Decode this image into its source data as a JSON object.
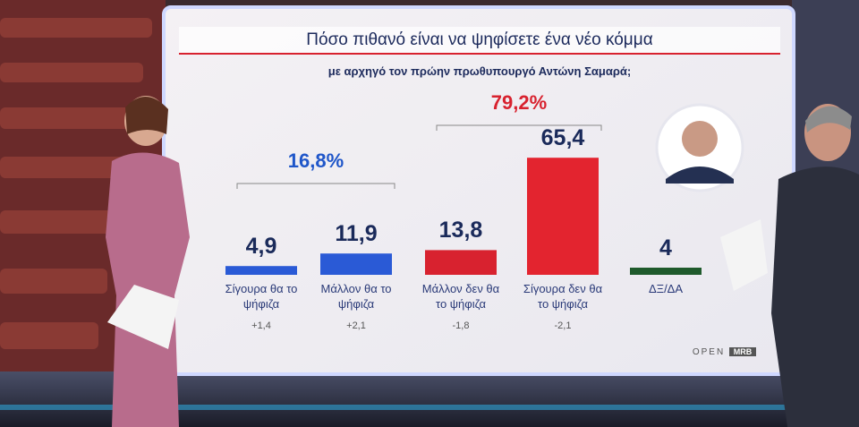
{
  "chart_data": {
    "type": "bar",
    "title": "Πόσο πιθανό είναι να ψηφίσετε ένα νέο κόμμα",
    "subtitle": "με αρχηγό τον πρώην πρωθυπουργό Αντώνη Σαμαρά;",
    "categories": [
      "Σίγουρα θα το ψήφιζα",
      "Μάλλον θα το ψήφιζα",
      "Μάλλον δεν θα το ψήφιζα",
      "Σίγουρα δεν θα το ψήφιζα",
      "ΔΞ/ΔΑ"
    ],
    "values": [
      4.9,
      11.9,
      13.8,
      65.4,
      4
    ],
    "value_labels": [
      "4,9",
      "11,9",
      "13,8",
      "65,4",
      "4"
    ],
    "colors": [
      "#2a5ad6",
      "#2a5ad6",
      "#d8222f",
      "#e3242f",
      "#1f5a2c"
    ],
    "changes": [
      1.4,
      2.1,
      -1.8,
      -2.1,
      null
    ],
    "change_labels": [
      "+1,4",
      "+2,1",
      "-1,8",
      "-2,1",
      null
    ],
    "groups": [
      {
        "label": "16,8%",
        "value": 16.8,
        "color": "#1f56c9"
      },
      {
        "label": "79,2%",
        "value": 79.2,
        "color": "#d8222f"
      }
    ],
    "logos": [
      "OPEN",
      "MRB"
    ]
  }
}
